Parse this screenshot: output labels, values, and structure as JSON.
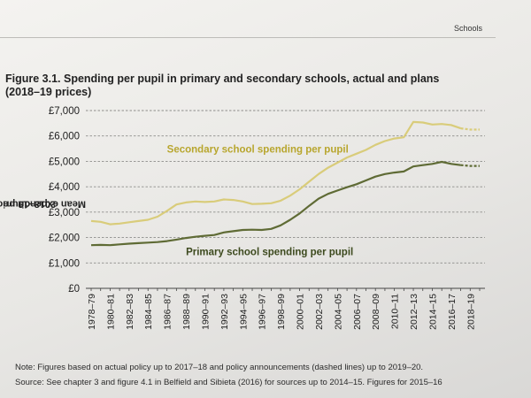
{
  "page": {
    "section_tag": "Schools",
    "figure_title_line1": "Figure 3.1. Spending per pupil in primary and secondary schools, actual and plans",
    "figure_title_line2": "(2018–19 prices)",
    "note": "Note: Figures based on actual policy up to 2017–18 and policy announcements (dashed lines) up to 2019–20.",
    "source": "Source: See chapter 3 and figure 4.1 in Belfield and Sibieta (2016) for sources up to 2014–15. Figures for 2015–16"
  },
  "colors": {
    "secondary": "#d9cc7a",
    "primary": "#5f6b35",
    "grid": "#8d8d8a",
    "axis": "#444444",
    "secondary_label": "#b8a62e",
    "primary_label": "#3d4a1e"
  },
  "chart_data": {
    "type": "line",
    "title": "Figure 3.1. Spending per pupil in primary and secondary schools, actual and plans (2018–19 prices)",
    "ylabel_line1": "Mean expenditure per pupil,",
    "ylabel_line2": "2018–19 prices",
    "xlabel": "",
    "ylim": [
      0,
      7000
    ],
    "yticks": [
      0,
      1000,
      2000,
      3000,
      4000,
      5000,
      6000,
      7000
    ],
    "ytick_labels": [
      "£0",
      "£1,000",
      "£2,000",
      "£3,000",
      "£4,000",
      "£5,000",
      "£6,000",
      "£7,000"
    ],
    "grid": "horizontal-dashed",
    "x": [
      "1978–79",
      "1979–80",
      "1980–81",
      "1981–82",
      "1982–83",
      "1983–84",
      "1984–85",
      "1985–86",
      "1986–87",
      "1987–88",
      "1988–89",
      "1989–90",
      "1990–91",
      "1991–92",
      "1992–93",
      "1993–94",
      "1994–95",
      "1995–96",
      "1996–97",
      "1997–98",
      "1998–99",
      "1999–00",
      "2000–01",
      "2001–02",
      "2002–03",
      "2003–04",
      "2004–05",
      "2005–06",
      "2006–07",
      "2007–08",
      "2008–09",
      "2009–10",
      "2010–11",
      "2011–12",
      "2012–13",
      "2013–14",
      "2014–15",
      "2015–16",
      "2016–17",
      "2017–18",
      "2018–19",
      "2019–20"
    ],
    "xtick_labels": [
      "1978–79",
      "1980–81",
      "1982–83",
      "1984–85",
      "1986–87",
      "1988–89",
      "1990–91",
      "1992–93",
      "1994–95",
      "1996–97",
      "1998–99",
      "2000–01",
      "2002–03",
      "2004–05",
      "2006–07",
      "2008–09",
      "2010–11",
      "2012–13",
      "2014–15",
      "2016–17",
      "2018–19"
    ],
    "solid_until": "2017–18",
    "series": [
      {
        "name": "Secondary school spending per pupil",
        "color_key": "secondary",
        "values": [
          2650,
          2620,
          2520,
          2550,
          2600,
          2650,
          2700,
          2820,
          3050,
          3300,
          3380,
          3420,
          3400,
          3420,
          3500,
          3480,
          3420,
          3320,
          3330,
          3350,
          3450,
          3650,
          3900,
          4200,
          4500,
          4750,
          4950,
          5150,
          5300,
          5450,
          5650,
          5800,
          5900,
          5950,
          6550,
          6530,
          6450,
          6470,
          6430,
          6300,
          6250,
          6250
        ]
      },
      {
        "name": "Primary school spending per pupil",
        "color_key": "primary",
        "values": [
          1700,
          1710,
          1700,
          1730,
          1760,
          1780,
          1800,
          1820,
          1860,
          1920,
          1980,
          2030,
          2070,
          2100,
          2200,
          2250,
          2300,
          2310,
          2300,
          2340,
          2480,
          2700,
          2950,
          3250,
          3530,
          3720,
          3850,
          3980,
          4100,
          4250,
          4400,
          4500,
          4560,
          4600,
          4800,
          4850,
          4900,
          4980,
          4900,
          4850,
          4820,
          4820
        ]
      }
    ],
    "annotations": [
      {
        "series_index": 0,
        "text": "Secondary school spending per pupil",
        "at_x": "1986–87",
        "at_y": 5350
      },
      {
        "series_index": 1,
        "text": "Primary school spending per pupil",
        "at_x": "1988–89",
        "at_y": 1300
      }
    ]
  }
}
